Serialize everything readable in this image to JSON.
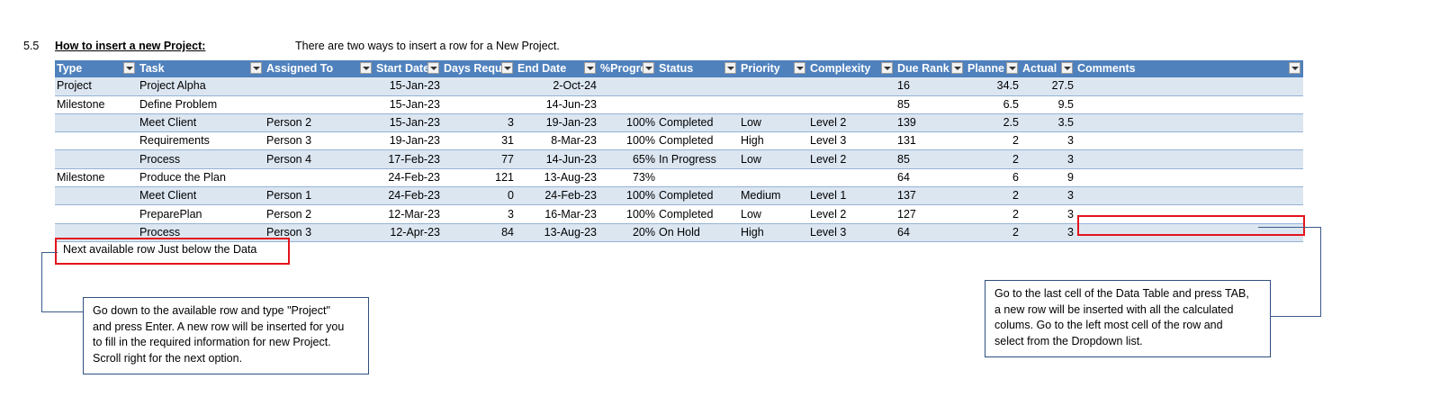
{
  "section": {
    "number": "5.5",
    "title": "How to insert a new Project:",
    "description": "There are two ways to insert a row for a New Project."
  },
  "table": {
    "headers": [
      "Type",
      "Task",
      "Assigned To",
      "Start Date",
      "Days Requi",
      "End Date",
      "%Progre",
      "Status",
      "Priority",
      "Complexity",
      "Due Rank",
      "Planne",
      "Actual",
      "Comments"
    ],
    "rows": [
      [
        "Project",
        "Project Alpha",
        "",
        "15-Jan-23",
        "",
        "2-Oct-24",
        "",
        "",
        "",
        "",
        "16",
        "34.5",
        "27.5",
        ""
      ],
      [
        "Milestone",
        "Define Problem",
        "",
        "15-Jan-23",
        "",
        "14-Jun-23",
        "",
        "",
        "",
        "",
        "85",
        "6.5",
        "9.5",
        ""
      ],
      [
        "",
        "Meet Client",
        "Person 2",
        "15-Jan-23",
        "3",
        "19-Jan-23",
        "100%",
        "Completed",
        "Low",
        "Level 2",
        "139",
        "2.5",
        "3.5",
        ""
      ],
      [
        "",
        "Requirements",
        "Person 3",
        "19-Jan-23",
        "31",
        "8-Mar-23",
        "100%",
        "Completed",
        "High",
        "Level 3",
        "131",
        "2",
        "3",
        ""
      ],
      [
        "",
        "Process",
        "Person 4",
        "17-Feb-23",
        "77",
        "14-Jun-23",
        "65%",
        "In Progress",
        "Low",
        "Level 2",
        "85",
        "2",
        "3",
        ""
      ],
      [
        "Milestone",
        "Produce the Plan",
        "",
        "24-Feb-23",
        "121",
        "13-Aug-23",
        "73%",
        "",
        "",
        "",
        "64",
        "6",
        "9",
        ""
      ],
      [
        "",
        "Meet Client",
        "Person 1",
        "24-Feb-23",
        "0",
        "24-Feb-23",
        "100%",
        "Completed",
        "Medium",
        "Level 1",
        "137",
        "2",
        "3",
        ""
      ],
      [
        "",
        "PreparePlan",
        "Person 2",
        "12-Mar-23",
        "3",
        "16-Mar-23",
        "100%",
        "Completed",
        "Low",
        "Level 2",
        "127",
        "2",
        "3",
        ""
      ],
      [
        "",
        "Process",
        "Person 3",
        "12-Apr-23",
        "84",
        "13-Aug-23",
        "20%",
        "On Hold",
        "High",
        "Level 3",
        "64",
        "2",
        "3",
        ""
      ]
    ]
  },
  "next_row_label": "Next available row Just below the Data",
  "callout_left": {
    "lines": [
      "Go down to the available row and type \"Project\"",
      "and press Enter. A new row will be inserted for you",
      "to fill in the required information for new Project.",
      "Scroll right for the next option."
    ]
  },
  "callout_right": {
    "lines": [
      "Go to the last cell of the Data Table and press TAB,",
      "a new row will be inserted with all the calculated",
      "colums. Go to the left most cell of the row and",
      "select from the Dropdown list."
    ]
  },
  "colors": {
    "header_bg": "#4f81bd",
    "band_bg": "#dce6f1",
    "highlight": "#e3141c",
    "callout_border": "#2f4f7f"
  }
}
